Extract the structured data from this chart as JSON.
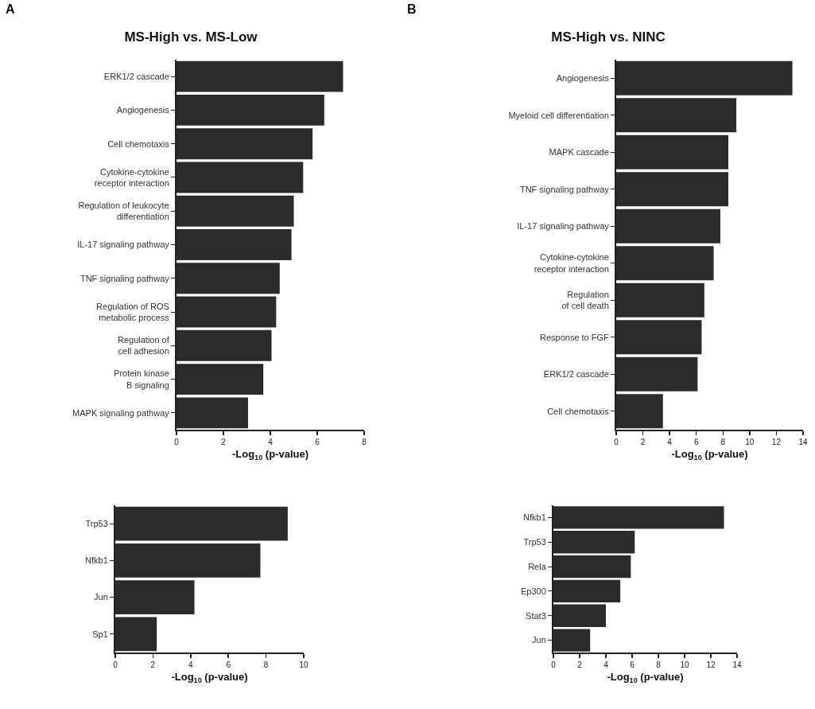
{
  "chart_data": [
    {
      "type": "bar",
      "orientation": "horizontal",
      "title": "MS-High vs. MS-Low",
      "annotations": [
        "A"
      ],
      "xlabel": "-Log$_{10}$ (p-value)",
      "categories": [
        "ERK1/2 cascade",
        "Angiogenesis",
        "Cell chemotaxis",
        "Cytokine-cytokine\nreceptor interaction",
        "Regulation of leukocyte\ndifferentiation",
        "IL-17 signaling pathway",
        "TNF signaling pathway",
        "Regulation of ROS\nmetabolic process",
        "Regulation of\ncell adhesion",
        "Protein kinase\nB signaling",
        "MAPK signaling pathway"
      ],
      "values": [
        7.1,
        6.3,
        5.8,
        5.4,
        5.0,
        4.9,
        4.4,
        4.25,
        4.05,
        3.7,
        3.05
      ],
      "color": "#2b2b2b",
      "xlim": [
        0,
        8
      ],
      "xticks": [
        0,
        2,
        4,
        6,
        8
      ]
    },
    {
      "type": "bar",
      "orientation": "horizontal",
      "title": "MS-High vs. NINC",
      "annotations": [
        "B"
      ],
      "xlabel": "-Log$_{10}$ (p-value)",
      "categories": [
        "Angiogenesis",
        "Myeloid cell differentiation",
        "MAPK cascade",
        "TNF signaling pathway",
        "IL-17 signaling pathway",
        "Cytokine-cytokine\nreceptor interaction",
        "Regulation\nof cell death",
        "Response to FGF",
        "ERK1/2 cascade",
        "Cell chemotaxis"
      ],
      "values": [
        13.2,
        9.0,
        8.4,
        8.4,
        7.8,
        7.3,
        6.6,
        6.4,
        6.1,
        3.5
      ],
      "color": "#2b2b2b",
      "xlim": [
        0,
        14
      ],
      "xticks": [
        0,
        2,
        4,
        6,
        8,
        10,
        12,
        14
      ]
    },
    {
      "type": "bar",
      "orientation": "horizontal",
      "xlabel": "-Log$_{10}$ (p-value)",
      "categories": [
        "Trp53",
        "Nfkb1",
        "Jun",
        "Sp1"
      ],
      "values": [
        9.15,
        7.7,
        4.2,
        2.2
      ],
      "color": "#2b2b2b",
      "xlim": [
        0,
        10
      ],
      "xticks": [
        0,
        2,
        4,
        6,
        8,
        10
      ]
    },
    {
      "type": "bar",
      "orientation": "horizontal",
      "xlabel": "-Log$_{10}$ (p-value)",
      "categories": [
        "Nfkb1",
        "Trp53",
        "Rela",
        "Ep300",
        "Stat3",
        "Jun"
      ],
      "values": [
        13.0,
        6.2,
        5.9,
        5.1,
        4.0,
        2.8
      ],
      "color": "#2b2b2b",
      "xlim": [
        0,
        14
      ],
      "xticks": [
        0,
        2,
        4,
        6,
        8,
        10,
        12,
        14
      ]
    }
  ]
}
